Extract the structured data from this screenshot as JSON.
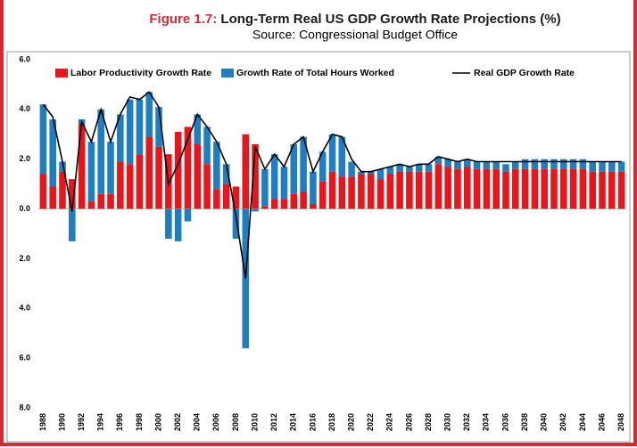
{
  "chart_data": {
    "type": "stacked-bar-line",
    "figure_label": "Figure 1.7:",
    "title": "Long-Term Real US GDP Growth Rate Projections (%)",
    "subtitle": "Source: Congressional Budget Office",
    "categories": [
      "1988",
      null,
      "1990",
      null,
      "1992",
      null,
      "1994",
      null,
      "1996",
      null,
      "1998",
      null,
      "2000",
      null,
      "2002",
      null,
      "2004",
      null,
      "2006",
      null,
      "2008",
      null,
      "2010",
      null,
      "2012",
      null,
      "2014",
      null,
      "2016",
      null,
      "2018",
      null,
      "2020",
      null,
      "2022",
      null,
      "2024",
      null,
      "2026",
      null,
      "2028",
      null,
      "2030",
      null,
      "2032",
      null,
      "2034",
      null,
      "2036",
      null,
      "2038",
      null,
      "2040",
      null,
      "2042",
      null,
      "2044",
      null,
      "2046",
      null,
      "2048"
    ],
    "series": [
      {
        "name": "Labor Productivity Growth Rate",
        "kind": "bar",
        "color": "#e8161b",
        "values": [
          1.4,
          0.9,
          1.5,
          1.2,
          3.4,
          0.3,
          0.6,
          0.6,
          1.9,
          1.8,
          2.2,
          2.9,
          2.5,
          2.2,
          3.1,
          3.3,
          2.6,
          1.8,
          0.8,
          1.0,
          0.9,
          3.0,
          2.6,
          0.1,
          0.4,
          0.4,
          0.6,
          0.7,
          0.2,
          1.1,
          1.5,
          1.3,
          1.3,
          1.4,
          1.4,
          1.2,
          1.4,
          1.5,
          1.5,
          1.5,
          1.5,
          1.8,
          1.7,
          1.6,
          1.7,
          1.6,
          1.6,
          1.6,
          1.5,
          1.6,
          1.6,
          1.6,
          1.6,
          1.6,
          1.6,
          1.6,
          1.6,
          1.5,
          1.5,
          1.5,
          1.5
        ]
      },
      {
        "name": "Growth Rate of Total Hours Worked",
        "kind": "bar",
        "color": "#1f7dc1",
        "values": [
          2.8,
          2.7,
          0.4,
          -1.3,
          0.2,
          2.4,
          3.4,
          2.1,
          1.9,
          2.6,
          2.2,
          1.8,
          1.6,
          -1.2,
          -1.3,
          -0.5,
          1.2,
          1.5,
          1.9,
          0.8,
          -1.2,
          -5.6,
          -0.1,
          1.5,
          1.8,
          1.3,
          2.0,
          2.2,
          1.3,
          1.2,
          1.5,
          1.6,
          0.6,
          0.1,
          0.1,
          0.4,
          0.3,
          0.3,
          0.2,
          0.3,
          0.3,
          0.3,
          0.3,
          0.3,
          0.3,
          0.3,
          0.3,
          0.3,
          0.3,
          0.3,
          0.4,
          0.4,
          0.4,
          0.4,
          0.4,
          0.4,
          0.4,
          0.4,
          0.4,
          0.4,
          0.4
        ]
      },
      {
        "name": "Real GDP Growth Rate",
        "kind": "line",
        "color": "#000000",
        "values": [
          4.2,
          3.7,
          1.9,
          -0.1,
          3.5,
          2.7,
          4.0,
          2.7,
          3.8,
          4.5,
          4.4,
          4.7,
          4.1,
          1.0,
          1.8,
          2.8,
          3.8,
          3.3,
          2.7,
          1.8,
          -0.3,
          -2.8,
          2.5,
          1.6,
          2.2,
          1.7,
          2.6,
          2.9,
          1.5,
          2.3,
          3.0,
          2.9,
          2.0,
          1.5,
          1.5,
          1.6,
          1.7,
          1.8,
          1.7,
          1.8,
          1.8,
          2.1,
          2.0,
          1.9,
          2.0,
          1.9,
          1.9,
          1.9,
          1.9,
          1.9,
          1.9,
          1.9,
          1.9,
          1.9,
          1.9,
          1.9,
          1.9,
          1.9,
          1.9,
          1.9,
          1.9
        ]
      }
    ],
    "ylim": [
      -8,
      6
    ],
    "yticks": [
      {
        "value": 6,
        "label": "6.0"
      },
      {
        "value": 4,
        "label": "4.0"
      },
      {
        "value": 2,
        "label": "2.0"
      },
      {
        "value": 0,
        "label": "0.0"
      },
      {
        "value": -2,
        "label": "2.0"
      },
      {
        "value": -4,
        "label": "4.0"
      },
      {
        "value": -6,
        "label": "6.0"
      },
      {
        "value": -8,
        "label": "8.0"
      }
    ],
    "grid": false,
    "legend": "top"
  }
}
